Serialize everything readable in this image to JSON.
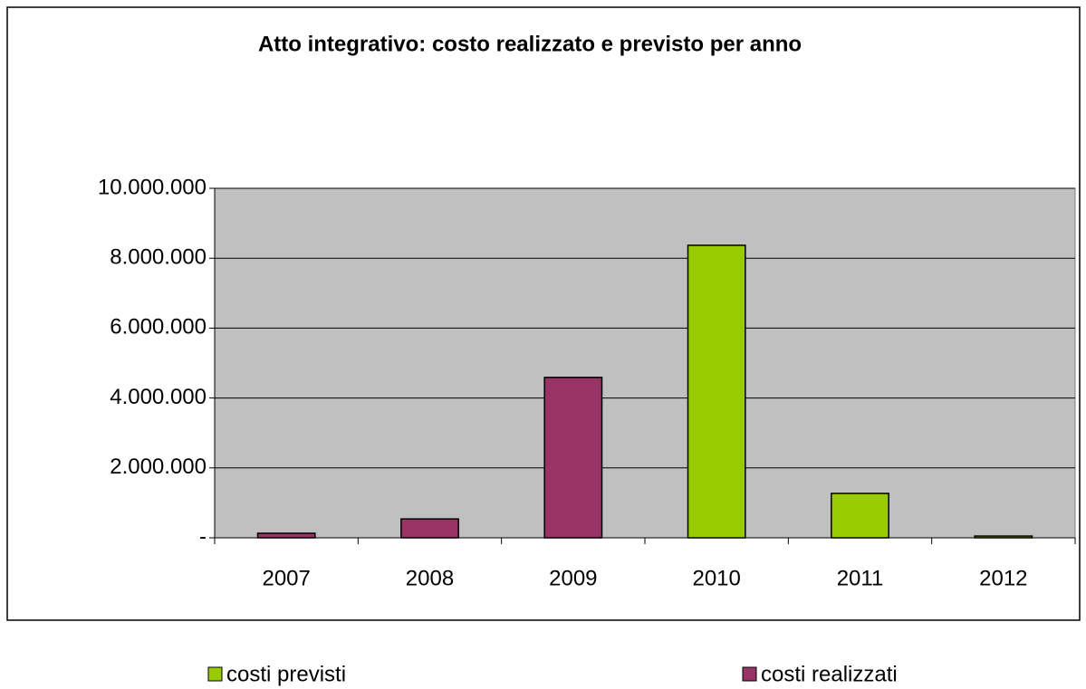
{
  "chart_data": {
    "type": "bar",
    "stacked": true,
    "title": "Atto integrativo: costo realizzato e previsto per anno",
    "categories": [
      "2007",
      "2008",
      "2009",
      "2010",
      "2011",
      "2012"
    ],
    "series": [
      {
        "name": "costi previsti",
        "color": "#99cc00",
        "values": [
          null,
          null,
          null,
          8370000,
          1270000,
          50000
        ]
      },
      {
        "name": "costi realizzati",
        "color": "#993366",
        "values": [
          130000,
          540000,
          4590000,
          null,
          null,
          null
        ]
      }
    ],
    "ylim": [
      0,
      10000000
    ],
    "yticks": [
      {
        "value": 0,
        "label": "-"
      },
      {
        "value": 2000000,
        "label": "2.000.000"
      },
      {
        "value": 4000000,
        "label": "4.000.000"
      },
      {
        "value": 6000000,
        "label": "6.000.000"
      },
      {
        "value": 8000000,
        "label": "8.000.000"
      },
      {
        "value": 10000000,
        "label": "10.000.000"
      }
    ],
    "grid": true,
    "plot_background": "#c0c0c0",
    "legend": "bottom"
  }
}
